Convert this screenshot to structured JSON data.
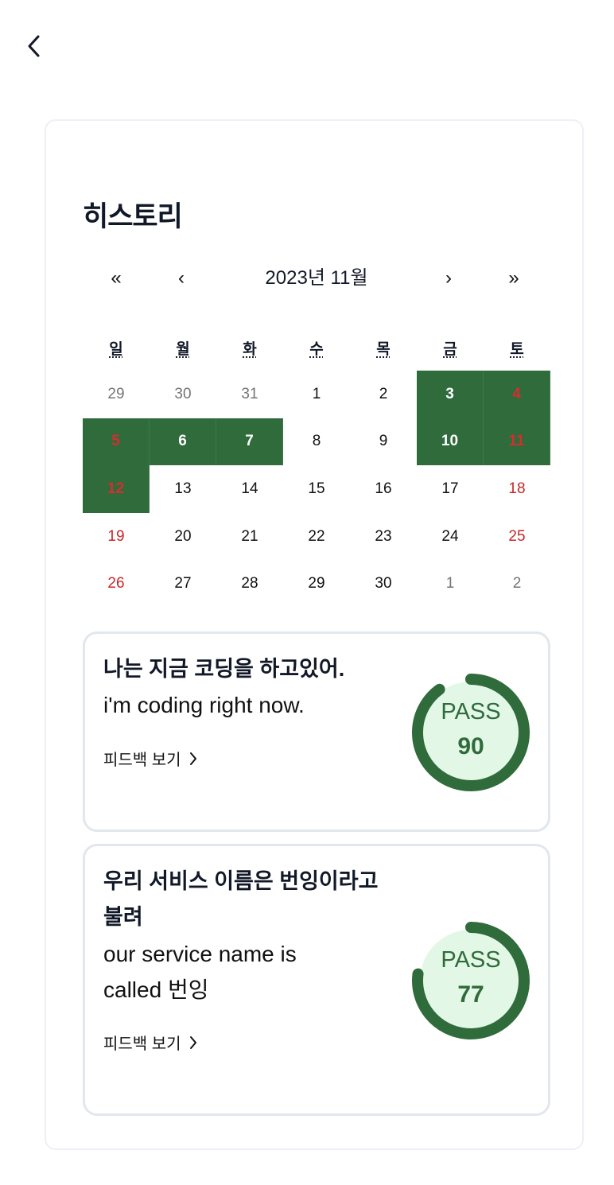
{
  "header": {
    "back_icon": "chevron-left-icon"
  },
  "history": {
    "title": "히스토리",
    "nav": {
      "prev_year": "«",
      "prev_month": "‹",
      "label": "2023년 11월",
      "next_month": "›",
      "next_year": "»"
    },
    "weekdays": [
      "일",
      "월",
      "화",
      "수",
      "목",
      "금",
      "토"
    ],
    "weeks": [
      [
        {
          "d": "29",
          "m": "other"
        },
        {
          "d": "30",
          "m": "other"
        },
        {
          "d": "31",
          "m": "other"
        },
        {
          "d": "1"
        },
        {
          "d": "2"
        },
        {
          "d": "3",
          "active": true
        },
        {
          "d": "4",
          "active": true,
          "red": true
        }
      ],
      [
        {
          "d": "5",
          "active": true,
          "red": true
        },
        {
          "d": "6",
          "active": true
        },
        {
          "d": "7",
          "active": true
        },
        {
          "d": "8"
        },
        {
          "d": "9"
        },
        {
          "d": "10",
          "active": true
        },
        {
          "d": "11",
          "active": true,
          "red": true
        }
      ],
      [
        {
          "d": "12",
          "active": true,
          "red": true
        },
        {
          "d": "13"
        },
        {
          "d": "14"
        },
        {
          "d": "15"
        },
        {
          "d": "16"
        },
        {
          "d": "17"
        },
        {
          "d": "18",
          "red": true
        }
      ],
      [
        {
          "d": "19",
          "red": true
        },
        {
          "d": "20"
        },
        {
          "d": "21"
        },
        {
          "d": "22"
        },
        {
          "d": "23"
        },
        {
          "d": "24"
        },
        {
          "d": "25",
          "red": true
        }
      ],
      [
        {
          "d": "26",
          "red": true
        },
        {
          "d": "27"
        },
        {
          "d": "28"
        },
        {
          "d": "29"
        },
        {
          "d": "30"
        },
        {
          "d": "1",
          "m": "other"
        },
        {
          "d": "2",
          "m": "other"
        }
      ]
    ]
  },
  "records": [
    {
      "korean": "나는 지금 코딩을 하고있어.",
      "english": "i'm coding right now.",
      "feedback_label": "피드백 보기",
      "status": "PASS",
      "score": "90",
      "progress": 0.9
    },
    {
      "korean": "우리 서비스 이름은 번잉이라고 불려",
      "english": "our service name is called 번잉",
      "feedback_label": "피드백 보기",
      "status": "PASS",
      "score": "77",
      "progress": 0.77
    }
  ],
  "colors": {
    "accent": "#2f6b3b",
    "accent_light": "#e3f7e6",
    "weekend": "#c62828"
  }
}
